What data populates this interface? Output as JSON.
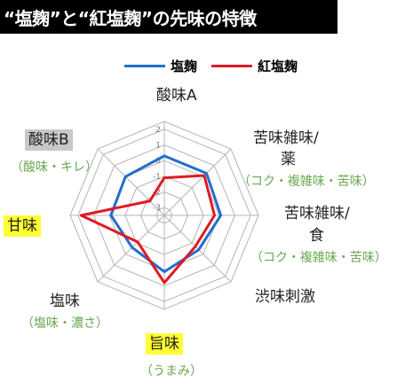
{
  "title": "“塩麹”と“紅塩麹”の先味の特徴",
  "colors": {
    "series_1": "#1f6fd0",
    "series_2": "#e21a22",
    "grid": "#b5b5b5",
    "highlight": "#ffff33",
    "sub_text": "#6aa84f"
  },
  "chart_data": {
    "type": "radar",
    "title": "“塩麹”と“紅塩麹”の先味の特徴",
    "axes": [
      {
        "label": "酸味A",
        "sub": ""
      },
      {
        "label": "苦味雑味/薬",
        "sub": "（コク・複雑味・苦味）"
      },
      {
        "label": "苦味雑味/食",
        "sub": "（コク・複雑味・苦味）"
      },
      {
        "label": "渋味刺激",
        "sub": ""
      },
      {
        "label": "旨味",
        "sub": "（うまみ）"
      },
      {
        "label": "塩味",
        "sub": "（塩味・濃さ）"
      },
      {
        "label": "甘味",
        "sub": ""
      },
      {
        "label": "酸味B",
        "sub": "（酸味・キレ）"
      }
    ],
    "ticks": [
      2,
      1,
      0,
      -1,
      -2,
      -3
    ],
    "range": [
      -3.5,
      2.5
    ],
    "legend_position": "top",
    "series": [
      {
        "name": "塩麹",
        "values": [
          0.3,
          0.3,
          0.1,
          -0.4,
          0.1,
          -0.6,
          -0.1,
          0.0
        ]
      },
      {
        "name": "紅塩麹",
        "values": [
          -1.1,
          0.1,
          -0.3,
          -0.7,
          0.8,
          -1.1,
          1.8,
          -2.2
        ]
      }
    ]
  },
  "labels": {
    "axis_0": "酸味A",
    "axis_1_line1": "苦味雑味/",
    "axis_1_line2": "薬",
    "axis_1_sub": "（コク・複雑味・苦味）",
    "axis_2_line1": "苦味雑味/",
    "axis_2_line2": "食",
    "axis_2_sub": "（コク・複雑味・苦味）",
    "axis_3": "渋味刺激",
    "axis_4": "旨味",
    "axis_4_sub": "（うまみ）",
    "axis_5": "塩味",
    "axis_5_sub": "（塩味・濃さ）",
    "axis_6": "甘味",
    "axis_7": "酸味B",
    "axis_7_sub": "（酸味・キレ）"
  }
}
